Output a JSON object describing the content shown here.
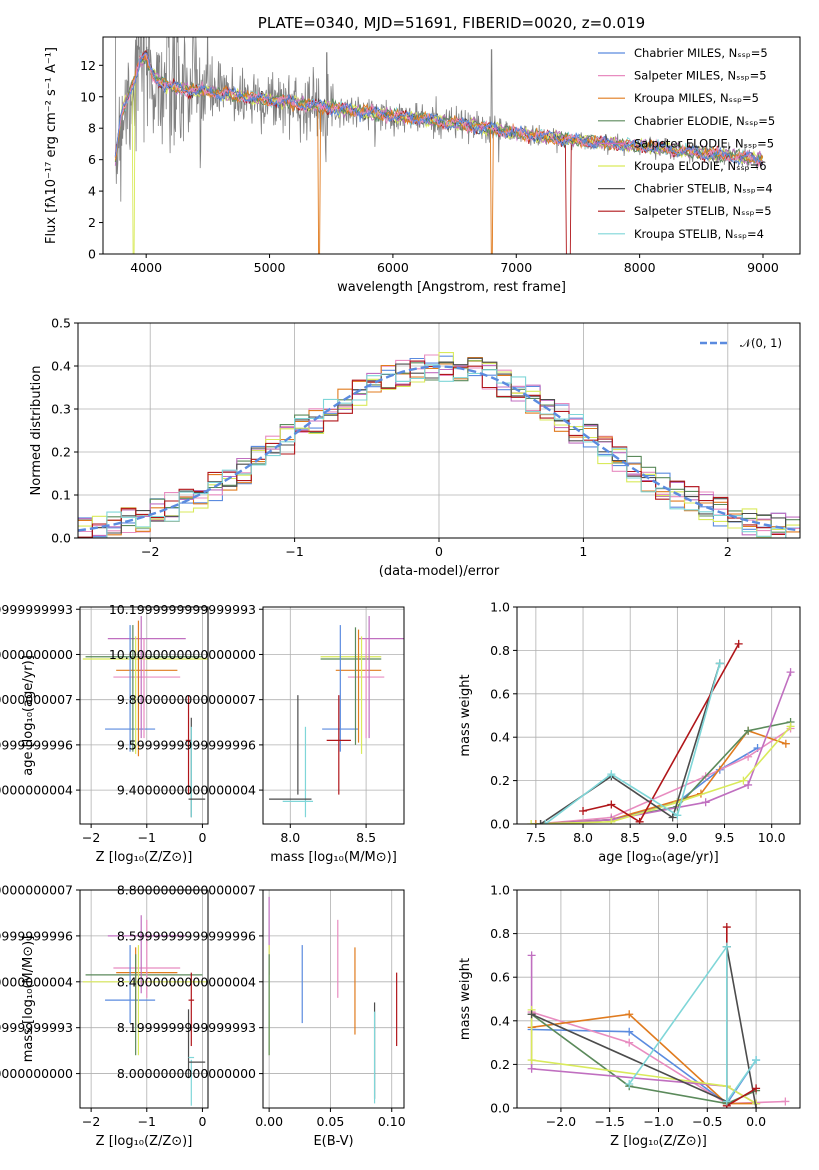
{
  "colors": [
    "#5b8bdf",
    "#e88cc0",
    "#e07b1f",
    "#5b8a5b",
    "#c06fc0",
    "#d9ea5b",
    "#4c4c4c",
    "#b0161a",
    "#7fd6d8"
  ],
  "chart_data": [
    {
      "id": "spectrum",
      "type": "line",
      "title": "PLATE=0340, MJD=51691, FIBERID=0020, z=0.019",
      "xlabel": "wavelength [Angstrom, rest frame]",
      "ylabel": "Flux [fλ10⁻¹⁷ erg cm⁻² s⁻¹ A⁻¹]",
      "xlim": [
        3650,
        9300
      ],
      "ylim": [
        0,
        13.8
      ],
      "xticks": [
        4000,
        5000,
        6000,
        7000,
        8000,
        9000
      ],
      "yticks": [
        0,
        2,
        4,
        6,
        8,
        10,
        12
      ],
      "grid": false,
      "legend_position": "top-right",
      "legend": [
        "Chabrier MILES, Nₛₛₚ=5",
        "Salpeter MILES, Nₛₛₚ=5",
        "Kroupa MILES, Nₛₛₚ=5",
        "Chabrier ELODIE, Nₛₛₚ=5",
        "Salpeter ELODIE, Nₛₛₚ=5",
        "Kroupa ELODIE, Nₛₛₚ=6",
        "Chabrier STELIB, Nₛₛₚ=4",
        "Salpeter STELIB, Nₛₛₚ=5",
        "Kroupa STELIB, Nₛₛₚ=4"
      ],
      "data_series": {
        "name": "data",
        "wavelength_range": [
          3750,
          9000
        ],
        "color": "#808080"
      },
      "model_continuum": {
        "x": [
          3750,
          3800,
          3900,
          3950,
          4000,
          4050,
          4100,
          4200,
          4400,
          4600,
          4800,
          5000,
          5200,
          5500,
          5800,
          6000,
          6300,
          6600,
          6900,
          7200,
          7500,
          7800,
          8100,
          8500,
          8800,
          9000
        ],
        "y": [
          6.0,
          9.0,
          11.0,
          12.2,
          12.6,
          11.4,
          11.0,
          10.6,
          10.4,
          10.2,
          10.0,
          9.8,
          9.6,
          9.3,
          9.0,
          8.8,
          8.5,
          8.2,
          7.8,
          7.5,
          7.2,
          7.0,
          6.8,
          6.4,
          6.2,
          6.0
        ]
      }
    },
    {
      "id": "residuals",
      "type": "step",
      "xlabel": "(data-model)/error",
      "ylabel": "Normed distribution",
      "xlim": [
        -2.5,
        2.5
      ],
      "ylim": [
        0,
        0.5
      ],
      "xticks": [
        -2,
        -1,
        0,
        1,
        2
      ],
      "yticks": [
        0.0,
        0.1,
        0.2,
        0.3,
        0.4,
        0.5
      ],
      "grid": true,
      "legend_position": "top-right",
      "legend": [
        "𝒩(0, 1)"
      ],
      "gaussian": {
        "mean": 0,
        "sigma": 1,
        "color": "#5b8bdf",
        "dashed": true
      },
      "bin_width": 0.1
    },
    {
      "id": "age_vs_Z",
      "type": "errorbar",
      "xlabel": "Z [log₁₀(Z/Z⊙)]",
      "ylabel": "age  [log₁₀(age/yr)]",
      "xlim": [
        -2.2,
        0.1
      ],
      "ylim": [
        9.25,
        10.21
      ],
      "xticks": [
        -2,
        -1,
        0
      ],
      "yticks": [
        9.4,
        9.6,
        9.8,
        10.0,
        10.2
      ],
      "grid": true,
      "points": [
        {
          "x": -1.05,
          "xerr": 1.05,
          "y": 9.99,
          "yerr": 0.0,
          "c": 3
        },
        {
          "x": -1.0,
          "xerr": 1.15,
          "y": 9.98,
          "yerr": 0.0,
          "c": 5
        },
        {
          "x": -1.0,
          "xerr": 0.7,
          "y": 10.07,
          "yerr": 0.0,
          "c": 4
        },
        {
          "x": -1.0,
          "xerr": 0.55,
          "y": 9.93,
          "yerr": 0.0,
          "c": 2
        },
        {
          "x": -1.0,
          "xerr": 0.6,
          "y": 9.9,
          "yerr": 0.0,
          "c": 1
        },
        {
          "x": -1.3,
          "xerr": 0.45,
          "y": 9.67,
          "yerr": 0.0,
          "c": 0
        },
        {
          "x": -1.3,
          "xerr": 0.0,
          "y": 9.85,
          "yerr": 0.28,
          "c": 0
        },
        {
          "x": -1.15,
          "xerr": 0.0,
          "y": 9.85,
          "yerr": 0.3,
          "c": 2
        },
        {
          "x": -1.1,
          "xerr": 0.0,
          "y": 9.9,
          "yerr": 0.27,
          "c": 4
        },
        {
          "x": -1.05,
          "xerr": 0.0,
          "y": 9.85,
          "yerr": 0.22,
          "c": 1
        },
        {
          "x": -1.2,
          "xerr": 0.0,
          "y": 9.82,
          "yerr": 0.26,
          "c": 5
        },
        {
          "x": -1.25,
          "xerr": 0.0,
          "y": 9.85,
          "yerr": 0.28,
          "c": 3
        },
        {
          "x": -0.25,
          "xerr": 0.0,
          "y": 9.6,
          "yerr": 0.22,
          "c": 7
        },
        {
          "x": -0.25,
          "xerr": 0.05,
          "y": 9.62,
          "yerr": 0.0,
          "c": 7
        },
        {
          "x": -0.2,
          "xerr": 0.0,
          "y": 9.5,
          "yerr": 0.22,
          "c": 6
        },
        {
          "x": -0.2,
          "xerr": 0.0,
          "y": 9.48,
          "yerr": 0.2,
          "c": 8
        },
        {
          "x": -0.1,
          "xerr": 0.15,
          "y": 9.36,
          "yerr": 0.0,
          "c": 6
        }
      ]
    },
    {
      "id": "age_vs_mass",
      "type": "errorbar",
      "xlabel": "mass [log₁₀(M/M⊙)]",
      "ylabel": "",
      "xlim": [
        7.82,
        8.75
      ],
      "ylim": [
        9.25,
        10.21
      ],
      "xticks": [
        8.0,
        8.5
      ],
      "yticks": [
        9.4,
        9.6,
        9.8,
        10.0,
        10.2
      ],
      "grid": true,
      "points": [
        {
          "x": 8.4,
          "xerr": 0.2,
          "y": 9.99,
          "yerr": 0.0,
          "c": 5
        },
        {
          "x": 8.4,
          "xerr": 0.2,
          "y": 9.98,
          "yerr": 0.0,
          "c": 3
        },
        {
          "x": 8.6,
          "xerr": 0.15,
          "y": 10.07,
          "yerr": 0.0,
          "c": 4
        },
        {
          "x": 8.45,
          "xerr": 0.15,
          "y": 9.93,
          "yerr": 0.0,
          "c": 2
        },
        {
          "x": 8.5,
          "xerr": 0.12,
          "y": 9.9,
          "yerr": 0.0,
          "c": 1
        },
        {
          "x": 8.33,
          "xerr": 0.12,
          "y": 9.67,
          "yerr": 0.0,
          "c": 0
        },
        {
          "x": 8.33,
          "xerr": 0.0,
          "y": 9.85,
          "yerr": 0.28,
          "c": 0
        },
        {
          "x": 8.45,
          "xerr": 0.0,
          "y": 9.86,
          "yerr": 0.25,
          "c": 2
        },
        {
          "x": 8.52,
          "xerr": 0.0,
          "y": 9.9,
          "yerr": 0.27,
          "c": 4
        },
        {
          "x": 8.5,
          "xerr": 0.0,
          "y": 9.85,
          "yerr": 0.22,
          "c": 1
        },
        {
          "x": 8.47,
          "xerr": 0.0,
          "y": 9.82,
          "yerr": 0.26,
          "c": 5
        },
        {
          "x": 8.43,
          "xerr": 0.0,
          "y": 9.86,
          "yerr": 0.26,
          "c": 3
        },
        {
          "x": 8.32,
          "xerr": 0.0,
          "y": 9.6,
          "yerr": 0.22,
          "c": 7
        },
        {
          "x": 8.32,
          "xerr": 0.08,
          "y": 9.62,
          "yerr": 0.0,
          "c": 7
        },
        {
          "x": 8.05,
          "xerr": 0.0,
          "y": 9.6,
          "yerr": 0.22,
          "c": 6
        },
        {
          "x": 8.1,
          "xerr": 0.0,
          "y": 9.48,
          "yerr": 0.2,
          "c": 8
        },
        {
          "x": 8.0,
          "xerr": 0.14,
          "y": 9.36,
          "yerr": 0.0,
          "c": 6
        },
        {
          "x": 8.05,
          "xerr": 0.1,
          "y": 9.35,
          "yerr": 0.0,
          "c": 8
        }
      ]
    },
    {
      "id": "weight_vs_age",
      "type": "line",
      "xlabel": "age  [log₁₀(age/yr)]",
      "ylabel": "mass weight",
      "xlim": [
        7.3,
        10.3
      ],
      "ylim": [
        0,
        1.0
      ],
      "xticks": [
        7.5,
        8.0,
        8.5,
        9.0,
        9.5,
        10.0
      ],
      "yticks": [
        0.0,
        0.2,
        0.4,
        0.6,
        0.8,
        1.0
      ],
      "grid": true,
      "series": [
        {
          "c": 0,
          "x": [
            7.5,
            8.3,
            9.0,
            9.45,
            9.85
          ],
          "y": [
            0.0,
            0.02,
            0.1,
            0.25,
            0.35
          ]
        },
        {
          "c": 1,
          "x": [
            7.5,
            8.3,
            9.3,
            9.75,
            10.2
          ],
          "y": [
            0.0,
            0.03,
            0.22,
            0.31,
            0.44
          ]
        },
        {
          "c": 2,
          "x": [
            7.5,
            8.3,
            9.25,
            9.75,
            10.15
          ],
          "y": [
            0.0,
            0.02,
            0.14,
            0.43,
            0.37
          ]
        },
        {
          "c": 3,
          "x": [
            7.55,
            8.3,
            9.0,
            9.75,
            10.2
          ],
          "y": [
            0.0,
            0.02,
            0.08,
            0.43,
            0.47
          ]
        },
        {
          "c": 4,
          "x": [
            7.55,
            8.3,
            9.3,
            9.75,
            10.2
          ],
          "y": [
            0.0,
            0.02,
            0.1,
            0.18,
            0.7
          ]
        },
        {
          "c": 5,
          "x": [
            7.45,
            8.3,
            9.0,
            9.7,
            10.2
          ],
          "y": [
            0.0,
            0.01,
            0.1,
            0.2,
            0.45
          ]
        },
        {
          "c": 6,
          "x": [
            7.55,
            8.3,
            8.95,
            9.45
          ],
          "y": [
            0.0,
            0.22,
            0.03,
            0.74
          ]
        },
        {
          "c": 7,
          "x": [
            8.0,
            8.3,
            8.6,
            9.65
          ],
          "y": [
            0.06,
            0.09,
            0.01,
            0.83
          ]
        },
        {
          "c": 8,
          "x": [
            7.6,
            8.3,
            9.0,
            9.45
          ],
          "y": [
            0.0,
            0.23,
            0.04,
            0.74
          ]
        }
      ]
    },
    {
      "id": "mass_vs_Z",
      "type": "errorbar",
      "xlabel": "Z [log₁₀(Z/Z⊙)]",
      "ylabel": "mass [log₁₀(M/M⊙)]",
      "xlim": [
        -2.2,
        0.1
      ],
      "ylim": [
        7.85,
        8.8
      ],
      "xticks": [
        -2,
        -1,
        0
      ],
      "yticks": [
        8.0,
        8.2,
        8.4,
        8.6,
        8.8
      ],
      "grid": true,
      "points": [
        {
          "x": -1.05,
          "xerr": 1.05,
          "y": 8.43,
          "yerr": 0.0,
          "c": 3
        },
        {
          "x": -1.0,
          "xerr": 1.15,
          "y": 8.4,
          "yerr": 0.0,
          "c": 5
        },
        {
          "x": -1.0,
          "xerr": 0.7,
          "y": 8.6,
          "yerr": 0.0,
          "c": 4
        },
        {
          "x": -1.0,
          "xerr": 0.55,
          "y": 8.44,
          "yerr": 0.0,
          "c": 2
        },
        {
          "x": -1.0,
          "xerr": 0.6,
          "y": 8.46,
          "yerr": 0.0,
          "c": 1
        },
        {
          "x": -1.3,
          "xerr": 0.45,
          "y": 8.32,
          "yerr": 0.0,
          "c": 0
        },
        {
          "x": -1.3,
          "xerr": 0.0,
          "y": 8.39,
          "yerr": 0.17,
          "c": 0
        },
        {
          "x": -1.2,
          "xerr": 0.0,
          "y": 8.38,
          "yerr": 0.17,
          "c": 2
        },
        {
          "x": -1.1,
          "xerr": 0.0,
          "y": 8.52,
          "yerr": 0.17,
          "c": 4
        },
        {
          "x": -1.0,
          "xerr": 0.0,
          "y": 8.5,
          "yerr": 0.17,
          "c": 1
        },
        {
          "x": -1.15,
          "xerr": 0.0,
          "y": 8.32,
          "yerr": 0.24,
          "c": 5
        },
        {
          "x": -1.2,
          "xerr": 0.0,
          "y": 8.3,
          "yerr": 0.22,
          "c": 3
        },
        {
          "x": -0.2,
          "xerr": 0.0,
          "y": 8.28,
          "yerr": 0.16,
          "c": 7
        },
        {
          "x": -0.2,
          "xerr": 0.05,
          "y": 8.32,
          "yerr": 0.0,
          "c": 7
        },
        {
          "x": -0.25,
          "xerr": 0.0,
          "y": 8.13,
          "yerr": 0.15,
          "c": 6
        },
        {
          "x": -0.2,
          "xerr": 0.0,
          "y": 7.96,
          "yerr": 0.1,
          "c": 8
        },
        {
          "x": -0.1,
          "xerr": 0.15,
          "y": 8.05,
          "yerr": 0.0,
          "c": 6
        },
        {
          "x": -0.2,
          "xerr": 0.05,
          "y": 8.07,
          "yerr": 0.0,
          "c": 8
        }
      ]
    },
    {
      "id": "mass_vs_ebv",
      "type": "errorbar",
      "xlabel": "E(B-V)",
      "ylabel": "",
      "xlim": [
        -0.005,
        0.11
      ],
      "ylim": [
        7.85,
        8.8
      ],
      "xticks": [
        0.0,
        0.05,
        0.1
      ],
      "yticks": [
        8.0,
        8.2,
        8.4,
        8.6,
        8.8
      ],
      "grid": true,
      "points": [
        {
          "x": 0.0,
          "xerr": 0.0,
          "y": 8.6,
          "yerr": 0.17,
          "c": 4
        },
        {
          "x": 0.0,
          "xerr": 0.0,
          "y": 8.32,
          "yerr": 0.24,
          "c": 5
        },
        {
          "x": 0.0,
          "xerr": 0.0,
          "y": 8.3,
          "yerr": 0.22,
          "c": 3
        },
        {
          "x": 0.027,
          "xerr": 0.0,
          "y": 8.39,
          "yerr": 0.17,
          "c": 0
        },
        {
          "x": 0.056,
          "xerr": 0.0,
          "y": 8.5,
          "yerr": 0.17,
          "c": 1
        },
        {
          "x": 0.07,
          "xerr": 0.0,
          "y": 8.36,
          "yerr": 0.19,
          "c": 2
        },
        {
          "x": 0.086,
          "xerr": 0.0,
          "y": 8.1,
          "yerr": 0.21,
          "c": 6
        },
        {
          "x": 0.086,
          "xerr": 0.0,
          "y": 8.07,
          "yerr": 0.2,
          "c": 8
        },
        {
          "x": 0.104,
          "xerr": 0.0,
          "y": 8.28,
          "yerr": 0.16,
          "c": 7
        }
      ]
    },
    {
      "id": "weight_vs_Z",
      "type": "line",
      "xlabel": "Z [log₁₀(Z/Z⊙)]",
      "ylabel": "mass weight",
      "xlim": [
        -2.45,
        0.45
      ],
      "ylim": [
        0,
        1.0
      ],
      "xticks": [
        -2.0,
        -1.5,
        -1.0,
        -0.5,
        0.0
      ],
      "yticks": [
        0.0,
        0.2,
        0.4,
        0.6,
        0.8,
        1.0
      ],
      "grid": true,
      "series": [
        {
          "c": 0,
          "x": [
            -2.3,
            -1.3,
            -0.3,
            0.0
          ],
          "y": [
            0.36,
            0.35,
            0.02,
            0.22
          ]
        },
        {
          "c": 1,
          "x": [
            -2.3,
            -1.3,
            -0.3,
            0.3
          ],
          "y": [
            0.44,
            0.3,
            0.02,
            0.03
          ]
        },
        {
          "c": 2,
          "x": [
            -2.3,
            -1.3,
            -0.3,
            0.0
          ],
          "y": [
            0.37,
            0.43,
            0.02,
            0.02
          ]
        },
        {
          "c": 3,
          "x": [
            -2.3,
            -1.3,
            -0.3,
            0.0
          ],
          "y": [
            0.43,
            0.1,
            0.02,
            0.08
          ]
        },
        {
          "c": 4,
          "x": [
            -2.3,
            -2.3,
            -0.3,
            0.0
          ],
          "y": [
            0.7,
            0.18,
            0.1,
            0.02
          ]
        },
        {
          "c": 5,
          "x": [
            -2.3,
            -2.3,
            -0.3,
            0.0
          ],
          "y": [
            0.45,
            0.22,
            0.1,
            0.02
          ]
        },
        {
          "c": 6,
          "x": [
            -2.3,
            -0.3,
            -0.3,
            0.0
          ],
          "y": [
            0.43,
            0.03,
            0.74,
            0.0
          ]
        },
        {
          "c": 7,
          "x": [
            -0.3,
            -0.3,
            0.0
          ],
          "y": [
            0.83,
            0.01,
            0.09
          ]
        },
        {
          "c": 8,
          "x": [
            -1.3,
            -0.3,
            -0.3,
            0.0
          ],
          "y": [
            0.11,
            0.74,
            0.03,
            0.22
          ]
        }
      ]
    }
  ]
}
